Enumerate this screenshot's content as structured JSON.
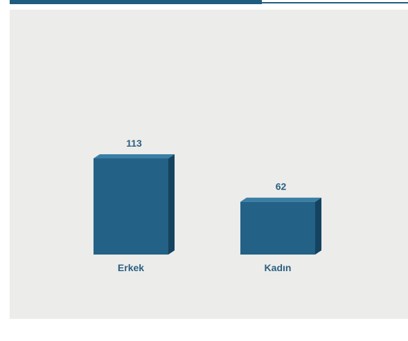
{
  "colors": {
    "bar_front": "#236186",
    "bar_side": "#15435f",
    "bar_top": "#3a7ea6",
    "label": "#2a5f80",
    "panel": "#ececea",
    "tab": "#1f5c80"
  },
  "chart_data": {
    "type": "bar",
    "categories": [
      "Erkek",
      "Kadın"
    ],
    "values": [
      113,
      62
    ],
    "data_labels": [
      "113",
      "62"
    ],
    "title": "",
    "xlabel": "",
    "ylabel": "",
    "ylim": [
      0,
      180
    ],
    "grid": false,
    "style": "3d"
  }
}
